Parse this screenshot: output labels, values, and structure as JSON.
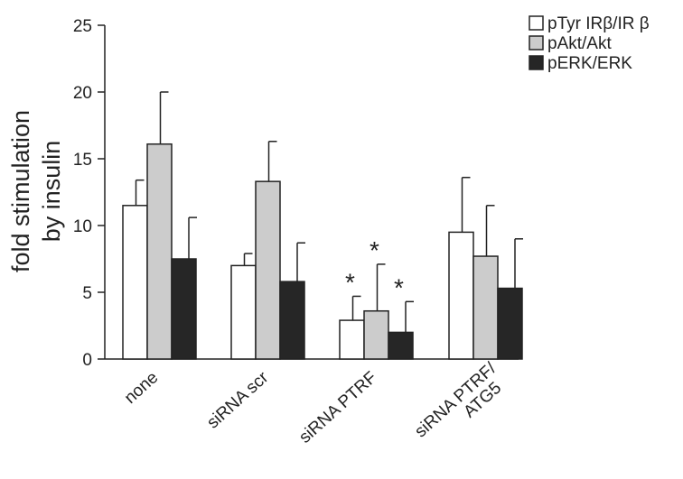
{
  "chart_data": {
    "type": "bar",
    "title": "",
    "ylabel_lines": [
      "fold stimulation",
      "by insulin"
    ],
    "xlabel": "",
    "ylim": [
      0,
      25
    ],
    "yticks": [
      0,
      5,
      10,
      15,
      20,
      25
    ],
    "grid": false,
    "legend_position": "top-right",
    "categories": [
      "none",
      "siRNA scr",
      "siRNA PTRF",
      "siRNA PTRF/\nATG5"
    ],
    "series": [
      {
        "name": "pTyr IRβ/IR β",
        "color": "#ffffff",
        "values": [
          11.5,
          7.0,
          2.9,
          9.5
        ],
        "errors": [
          1.9,
          0.9,
          1.8,
          4.1
        ]
      },
      {
        "name": "pAkt/Akt",
        "color": "#cccccc",
        "values": [
          16.1,
          13.3,
          3.6,
          7.7
        ],
        "errors": [
          3.9,
          3.0,
          3.5,
          3.8
        ]
      },
      {
        "name": "pERK/ERK",
        "color": "#262626",
        "values": [
          7.5,
          5.8,
          2.0,
          5.3
        ],
        "errors": [
          3.1,
          2.9,
          2.3,
          3.7
        ]
      }
    ],
    "annotations": [
      {
        "category_index": 2,
        "series_index": 0,
        "text": "*"
      },
      {
        "category_index": 2,
        "series_index": 1,
        "text": "*"
      },
      {
        "category_index": 2,
        "series_index": 2,
        "text": "*"
      }
    ]
  }
}
